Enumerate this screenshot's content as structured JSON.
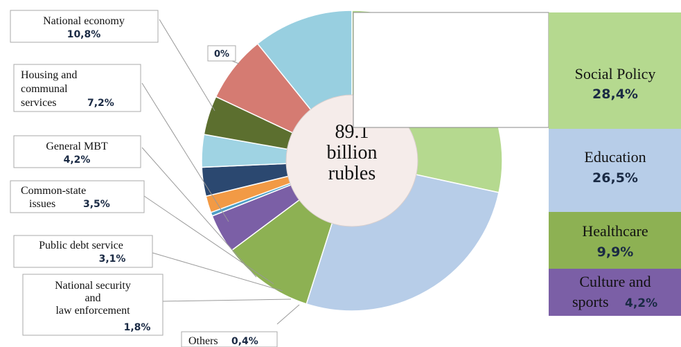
{
  "chart_data": {
    "type": "pie",
    "total": {
      "lines": [
        "89.1",
        "billion",
        "rubles"
      ]
    },
    "slices": [
      {
        "name": "Social Policy",
        "value": 28.4,
        "label": "28,4%",
        "color": "#b5d98f"
      },
      {
        "name": "Education",
        "value": 26.5,
        "label": "26,5%",
        "color": "#b7cde8"
      },
      {
        "name": "Healthcare",
        "value": 9.9,
        "label": "9,9%",
        "color": "#8db153"
      },
      {
        "name": "Culture and sports",
        "value": 4.2,
        "label": "4,2%",
        "color": "#7b5fa6"
      },
      {
        "name": "Others",
        "value": 0.4,
        "label": "0,4%",
        "color": "#4f9fc6"
      },
      {
        "name": "National security and law enforcement",
        "value": 1.8,
        "label": "1,8%",
        "color": "#f29a45"
      },
      {
        "name": "Public debt service",
        "value": 3.1,
        "label": "3,1%",
        "color": "#2b4870"
      },
      {
        "name": "Common-state issues",
        "value": 3.5,
        "label": "3,5%",
        "color": "#9fd3e3"
      },
      {
        "name": "General MBT",
        "value": 4.2,
        "label": "4,2%",
        "color": "#5c6f2f"
      },
      {
        "name": "Housing and communal services",
        "value": 7.2,
        "label": "7,2%",
        "color": "#d57b72"
      },
      {
        "name": "National economy",
        "value": 10.8,
        "label": "10,8%",
        "color": "#98cfe0"
      },
      {
        "name": "",
        "value": 0,
        "label": "0%",
        "color": "#ffffff"
      }
    ],
    "legend_right": [
      {
        "lines": [
          "Social Policy"
        ],
        "label": "28,4%",
        "color": "#b5d98f"
      },
      {
        "lines": [
          "Education"
        ],
        "label": "26,5%",
        "color": "#b7cde8"
      },
      {
        "lines": [
          "Healthcare"
        ],
        "label": "9,9%",
        "color": "#8db153"
      },
      {
        "lines": [
          "Culture and",
          "sports"
        ],
        "label": "4,2%",
        "color": "#7b5fa6"
      }
    ],
    "callouts_left": [
      {
        "lines": [
          "National economy"
        ],
        "label": "10,8%"
      },
      {
        "lines": [
          "Housing and",
          "communal",
          "services"
        ],
        "label": "7,2%"
      },
      {
        "lines": [
          "General MBT"
        ],
        "label": "4,2%"
      },
      {
        "lines": [
          "Common-state",
          "issues"
        ],
        "label": "3,5%"
      },
      {
        "lines": [
          "Public debt service"
        ],
        "label": "3,1%"
      },
      {
        "lines": [
          "National security",
          "and",
          "law enforcement"
        ],
        "label": "1,8%"
      },
      {
        "lines": [
          "Others"
        ],
        "label": "0,4%"
      }
    ]
  }
}
